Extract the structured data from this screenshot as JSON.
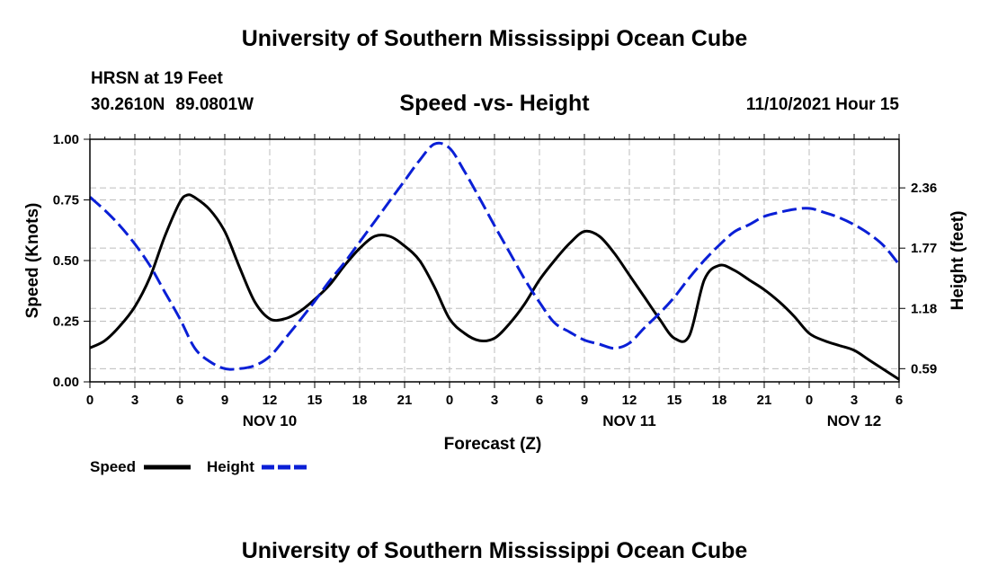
{
  "header": {
    "title": "University of Southern Mississippi Ocean Cube",
    "station": "HRSN at 19 Feet",
    "latitude": "30.2610N",
    "longitude": "89.0801W",
    "subtitle": "Speed -vs- Height",
    "datetime": "11/10/2021 Hour 15"
  },
  "footer": {
    "title": "University of Southern Mississippi Ocean Cube"
  },
  "chart_data": {
    "type": "line",
    "title": "Speed -vs- Height",
    "xlabel": "Forecast (Z)",
    "ylabel": "Speed (Knots)",
    "y2label": "Height (feet)",
    "x_range_hours": [
      0,
      54
    ],
    "ylim": [
      0,
      1
    ],
    "y2lim": [
      0.461,
      2.836
    ],
    "x_ticks": [
      {
        "h": 0,
        "label": "0"
      },
      {
        "h": 3,
        "label": "3"
      },
      {
        "h": 6,
        "label": "6"
      },
      {
        "h": 9,
        "label": "9"
      },
      {
        "h": 12,
        "label": "12"
      },
      {
        "h": 15,
        "label": "15"
      },
      {
        "h": 18,
        "label": "18"
      },
      {
        "h": 21,
        "label": "21"
      },
      {
        "h": 24,
        "label": "0"
      },
      {
        "h": 27,
        "label": "3"
      },
      {
        "h": 30,
        "label": "6"
      },
      {
        "h": 33,
        "label": "9"
      },
      {
        "h": 36,
        "label": "12"
      },
      {
        "h": 39,
        "label": "15"
      },
      {
        "h": 42,
        "label": "18"
      },
      {
        "h": 45,
        "label": "21"
      },
      {
        "h": 48,
        "label": "0"
      },
      {
        "h": 51,
        "label": "3"
      },
      {
        "h": 54,
        "label": "6"
      }
    ],
    "date_labels": [
      {
        "h": 12,
        "label": "NOV 10"
      },
      {
        "h": 36,
        "label": "NOV 11"
      },
      {
        "h": 51,
        "label": "NOV 12"
      }
    ],
    "y_ticks": [
      {
        "v": 0.0,
        "label": "0.00"
      },
      {
        "v": 0.25,
        "label": "0.25"
      },
      {
        "v": 0.5,
        "label": "0.50"
      },
      {
        "v": 0.75,
        "label": "0.75"
      },
      {
        "v": 1.0,
        "label": "1.00"
      }
    ],
    "y2_ticks": [
      {
        "v": 0.59,
        "label": "0.59"
      },
      {
        "v": 1.18,
        "label": "1.18"
      },
      {
        "v": 1.77,
        "label": "1.77"
      },
      {
        "v": 2.36,
        "label": "2.36"
      }
    ],
    "series": [
      {
        "name": "Speed",
        "axis": "left",
        "color": "#000000",
        "dash": "solid",
        "x": [
          0,
          1,
          2,
          3,
          4,
          5,
          6,
          6.5,
          7,
          8,
          9,
          10,
          11,
          12,
          13,
          14,
          15,
          16,
          17,
          18,
          19,
          20,
          21,
          22,
          23,
          24,
          25,
          26,
          27,
          28,
          29,
          30,
          31,
          32,
          33,
          34,
          35,
          36,
          37,
          38,
          39,
          40,
          41,
          42,
          43,
          44,
          45,
          46,
          47,
          48,
          49,
          50,
          51,
          52,
          53,
          54
        ],
        "y": [
          0.14,
          0.17,
          0.23,
          0.31,
          0.43,
          0.6,
          0.74,
          0.77,
          0.76,
          0.71,
          0.62,
          0.47,
          0.33,
          0.26,
          0.26,
          0.29,
          0.34,
          0.4,
          0.48,
          0.55,
          0.6,
          0.6,
          0.56,
          0.5,
          0.39,
          0.26,
          0.2,
          0.17,
          0.18,
          0.24,
          0.32,
          0.42,
          0.5,
          0.57,
          0.62,
          0.6,
          0.53,
          0.44,
          0.35,
          0.26,
          0.18,
          0.19,
          0.42,
          0.48,
          0.46,
          0.42,
          0.38,
          0.33,
          0.27,
          0.2,
          0.17,
          0.15,
          0.13,
          0.09,
          0.05,
          0.01
        ]
      },
      {
        "name": "Height",
        "axis": "right",
        "color": "#0a1fd6",
        "dash": "dashed",
        "x": [
          0,
          1,
          2,
          3,
          4,
          5,
          6,
          7,
          8,
          9,
          10,
          11,
          12,
          13,
          14,
          15,
          16,
          17,
          18,
          19,
          20,
          21,
          22,
          23,
          24,
          25,
          26,
          27,
          28,
          29,
          30,
          31,
          32,
          33,
          34,
          35,
          36,
          37,
          38,
          39,
          40,
          41,
          42,
          43,
          44,
          45,
          46,
          47,
          48,
          49,
          50,
          51,
          52,
          53,
          54
        ],
        "y": [
          2.27,
          2.14,
          1.99,
          1.81,
          1.6,
          1.34,
          1.08,
          0.79,
          0.66,
          0.59,
          0.59,
          0.62,
          0.71,
          0.88,
          1.06,
          1.25,
          1.45,
          1.63,
          1.83,
          2.03,
          2.23,
          2.43,
          2.63,
          2.79,
          2.75,
          2.52,
          2.26,
          1.99,
          1.73,
          1.47,
          1.24,
          1.04,
          0.95,
          0.87,
          0.83,
          0.79,
          0.84,
          0.99,
          1.13,
          1.29,
          1.48,
          1.65,
          1.8,
          1.93,
          2.0,
          2.08,
          2.12,
          2.15,
          2.16,
          2.12,
          2.07,
          2.0,
          1.91,
          1.79,
          1.61
        ]
      }
    ]
  }
}
